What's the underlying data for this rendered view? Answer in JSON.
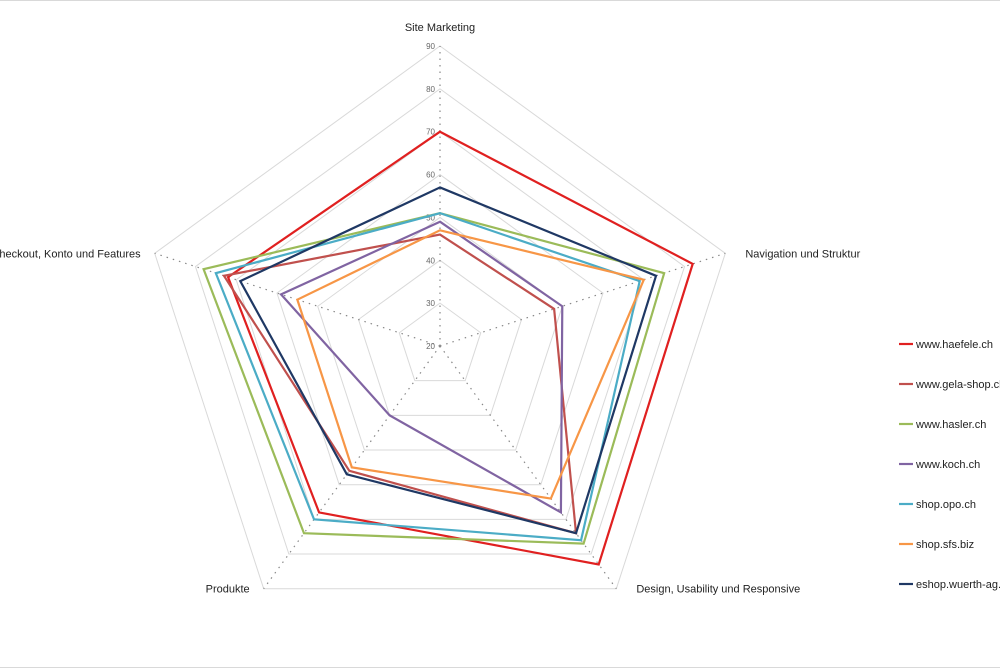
{
  "chart_data": {
    "type": "radar",
    "axes": [
      "Site Marketing",
      "Navigation und Struktur",
      "Design, Usability und Responsive",
      "Produkte",
      "Checkout, Konto und Features"
    ],
    "rlim": [
      20,
      90
    ],
    "ticks": [
      20,
      30,
      40,
      50,
      60,
      70,
      80,
      90
    ],
    "grid": true,
    "legend_position": "right",
    "series": [
      {
        "name": "www.haefele.ch",
        "color": "#e02020",
        "values": [
          70,
          82,
          83,
          68,
          72
        ]
      },
      {
        "name": "www.gela-shop.ch",
        "color": "#c0504d",
        "values": [
          46,
          48,
          74,
          56,
          73
        ]
      },
      {
        "name": "www.hasler.ch",
        "color": "#9bbb59",
        "values": [
          51,
          75,
          77,
          74,
          78
        ]
      },
      {
        "name": "www.koch.ch",
        "color": "#8064a2",
        "values": [
          49,
          50,
          68,
          40,
          59
        ]
      },
      {
        "name": "shop.opo.ch",
        "color": "#4bacc6",
        "values": [
          51,
          69,
          76,
          70,
          75
        ]
      },
      {
        "name": "shop.sfs.biz",
        "color": "#f79646",
        "values": [
          47,
          70,
          64,
          55,
          55
        ]
      },
      {
        "name": "eshop.wuerth-ag.ch",
        "color": "#1f3864",
        "values": [
          57,
          73,
          74,
          57,
          69
        ]
      }
    ]
  }
}
